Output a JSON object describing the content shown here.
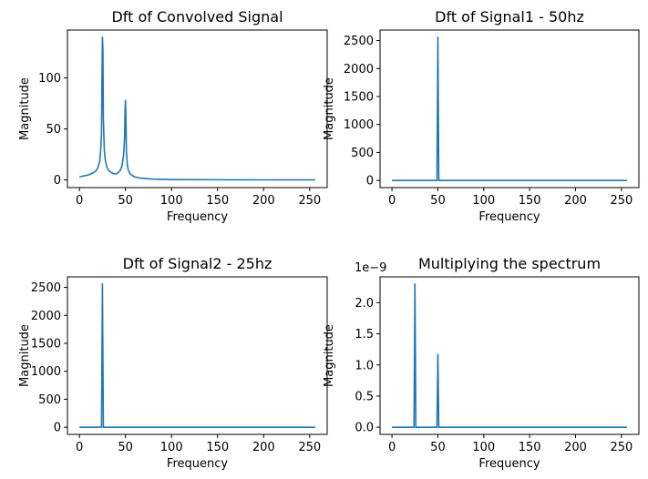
{
  "chart_data": [
    {
      "type": "line",
      "title": "Dft of Convolved Signal",
      "xlabel": "Frequency",
      "ylabel": "Magnitude",
      "xlim": [
        -13,
        269
      ],
      "ylim": [
        -7.5,
        147
      ],
      "xticks": [
        0,
        50,
        100,
        150,
        200,
        250
      ],
      "yticks": [
        0,
        50,
        100
      ],
      "color": "#1f77b4",
      "series": [
        {
          "x": [
            0,
            5,
            10,
            15,
            18,
            20,
            22,
            23,
            24,
            24.5,
            25,
            25.5,
            26,
            27,
            28,
            30,
            32,
            35,
            38,
            40,
            42,
            44,
            46,
            47,
            48,
            49,
            49.5,
            50,
            50.5,
            51,
            52,
            53,
            55,
            58,
            60,
            65,
            70,
            80,
            100,
            150,
            200,
            256
          ],
          "y": [
            3,
            4,
            5,
            7,
            9,
            12,
            18,
            28,
            45,
            100,
            140,
            128,
            60,
            30,
            20,
            12,
            9,
            7,
            6,
            6,
            7,
            9,
            13,
            18,
            25,
            40,
            65,
            78,
            60,
            28,
            15,
            10,
            6,
            4,
            3,
            2,
            1.5,
            0.8,
            0.4,
            0.2,
            0.1,
            0.1
          ]
        }
      ]
    },
    {
      "type": "line",
      "title": "Dft of Signal1 - 50hz",
      "xlabel": "Frequency",
      "ylabel": "Magnitude",
      "xlim": [
        -13,
        269
      ],
      "ylim": [
        -128,
        2688
      ],
      "xticks": [
        0,
        50,
        100,
        150,
        200,
        250
      ],
      "yticks": [
        0,
        500,
        1000,
        1500,
        2000,
        2500
      ],
      "color": "#1f77b4",
      "series": [
        {
          "x": [
            0,
            49,
            50,
            51,
            256
          ],
          "y": [
            0,
            0,
            2560,
            0,
            0
          ]
        }
      ]
    },
    {
      "type": "line",
      "title": "Dft of Signal2 - 25hz",
      "xlabel": "Frequency",
      "ylabel": "Magnitude",
      "xlim": [
        -13,
        269
      ],
      "ylim": [
        -128,
        2688
      ],
      "xticks": [
        0,
        50,
        100,
        150,
        200,
        250
      ],
      "yticks": [
        0,
        500,
        1000,
        1500,
        2000,
        2500
      ],
      "color": "#1f77b4",
      "series": [
        {
          "x": [
            0,
            24,
            25,
            26,
            256
          ],
          "y": [
            0,
            0,
            2560,
            0,
            0
          ]
        }
      ]
    },
    {
      "type": "line",
      "title": "Multiplying the spectrum",
      "xlabel": "Frequency",
      "ylabel": "Magnitude",
      "offset_text": "1e−9",
      "xlim": [
        -13,
        269
      ],
      "ylim": [
        -0.115,
        2.415
      ],
      "xticks": [
        0,
        50,
        100,
        150,
        200,
        250
      ],
      "yticks": [
        0.0,
        0.5,
        1.0,
        1.5,
        2.0
      ],
      "color": "#1f77b4",
      "series": [
        {
          "x": [
            0,
            24,
            25,
            26,
            49,
            50,
            51,
            256
          ],
          "y": [
            0,
            0,
            2.3,
            0,
            0,
            1.17,
            0,
            0
          ]
        }
      ]
    }
  ]
}
